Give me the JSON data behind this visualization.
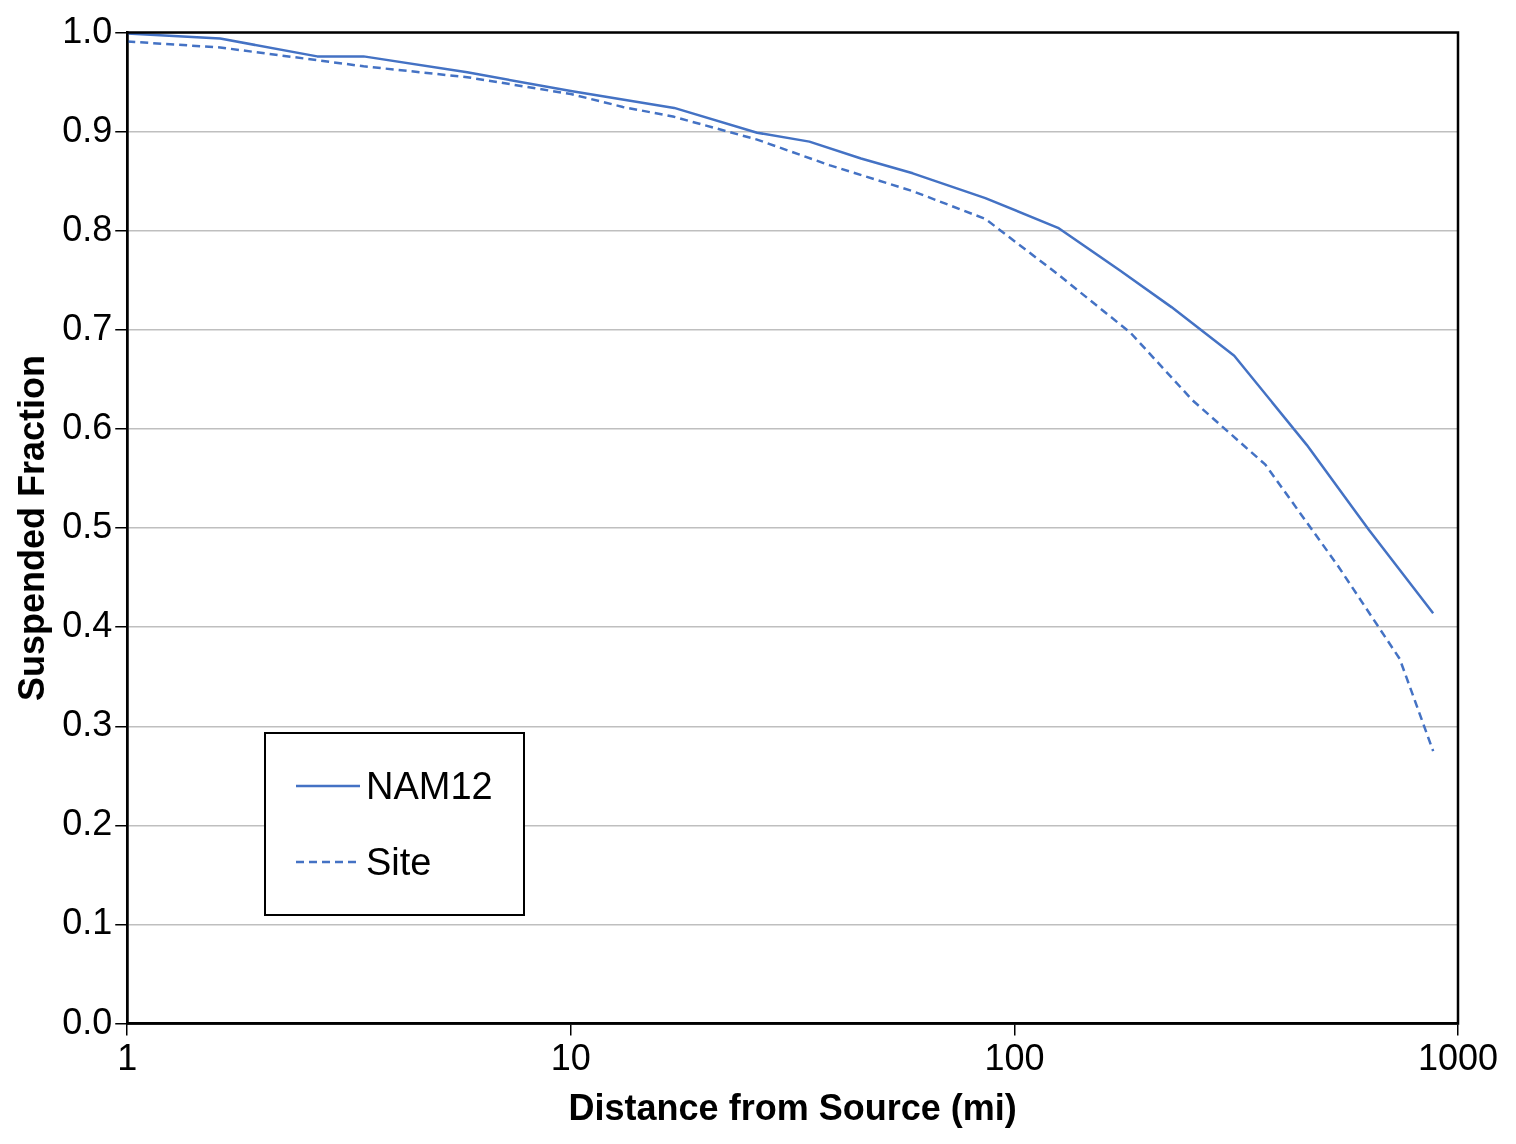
{
  "chart_data": {
    "type": "line",
    "xlabel": "Distance from Source (mi)",
    "ylabel": "Suspended Fraction",
    "log": "x",
    "xlim": [
      1,
      1000
    ],
    "xticks": [
      1,
      10,
      100,
      1000
    ],
    "ylim": [
      0,
      1
    ],
    "yticks": [
      {
        "value": 0,
        "label": "0.0"
      },
      0.1,
      0.2,
      0.3,
      0.4,
      0.5,
      0.6,
      0.7,
      0.8,
      0.9,
      {
        "value": 1,
        "label": "1.0"
      }
    ],
    "grid": "y",
    "legend": "bottom left",
    "marker": "none",
    "series": [
      {
        "name": "NAM12",
        "color": "#4472c4",
        "line_style": "solid",
        "x": [
          1,
          1.62,
          2.68,
          3.41,
          5.84,
          10,
          17.1,
          26.3,
          34.5,
          45.1,
          59,
          86,
          125.4,
          173,
          226,
          313,
          456,
          630,
          879
        ],
        "values": [
          0.999,
          0.994,
          0.976,
          0.976,
          0.96,
          0.941,
          0.924,
          0.899,
          0.89,
          0.873,
          0.858,
          0.833,
          0.803,
          0.76,
          0.723,
          0.674,
          0.584,
          0.498,
          0.414
        ]
      },
      {
        "name": "Site",
        "color": "#4472c4",
        "line_style": "dashed",
        "x": [
          1,
          1.62,
          3.41,
          5.84,
          10,
          13.1,
          17.1,
          26.3,
          38.4,
          59,
          86,
          125.4,
          182.8,
          252,
          368,
          536,
          739,
          879
        ],
        "values": [
          0.991,
          0.985,
          0.966,
          0.955,
          0.938,
          0.925,
          0.915,
          0.892,
          0.866,
          0.84,
          0.812,
          0.756,
          0.697,
          0.629,
          0.564,
          0.462,
          0.368,
          0.275
        ]
      }
    ]
  }
}
